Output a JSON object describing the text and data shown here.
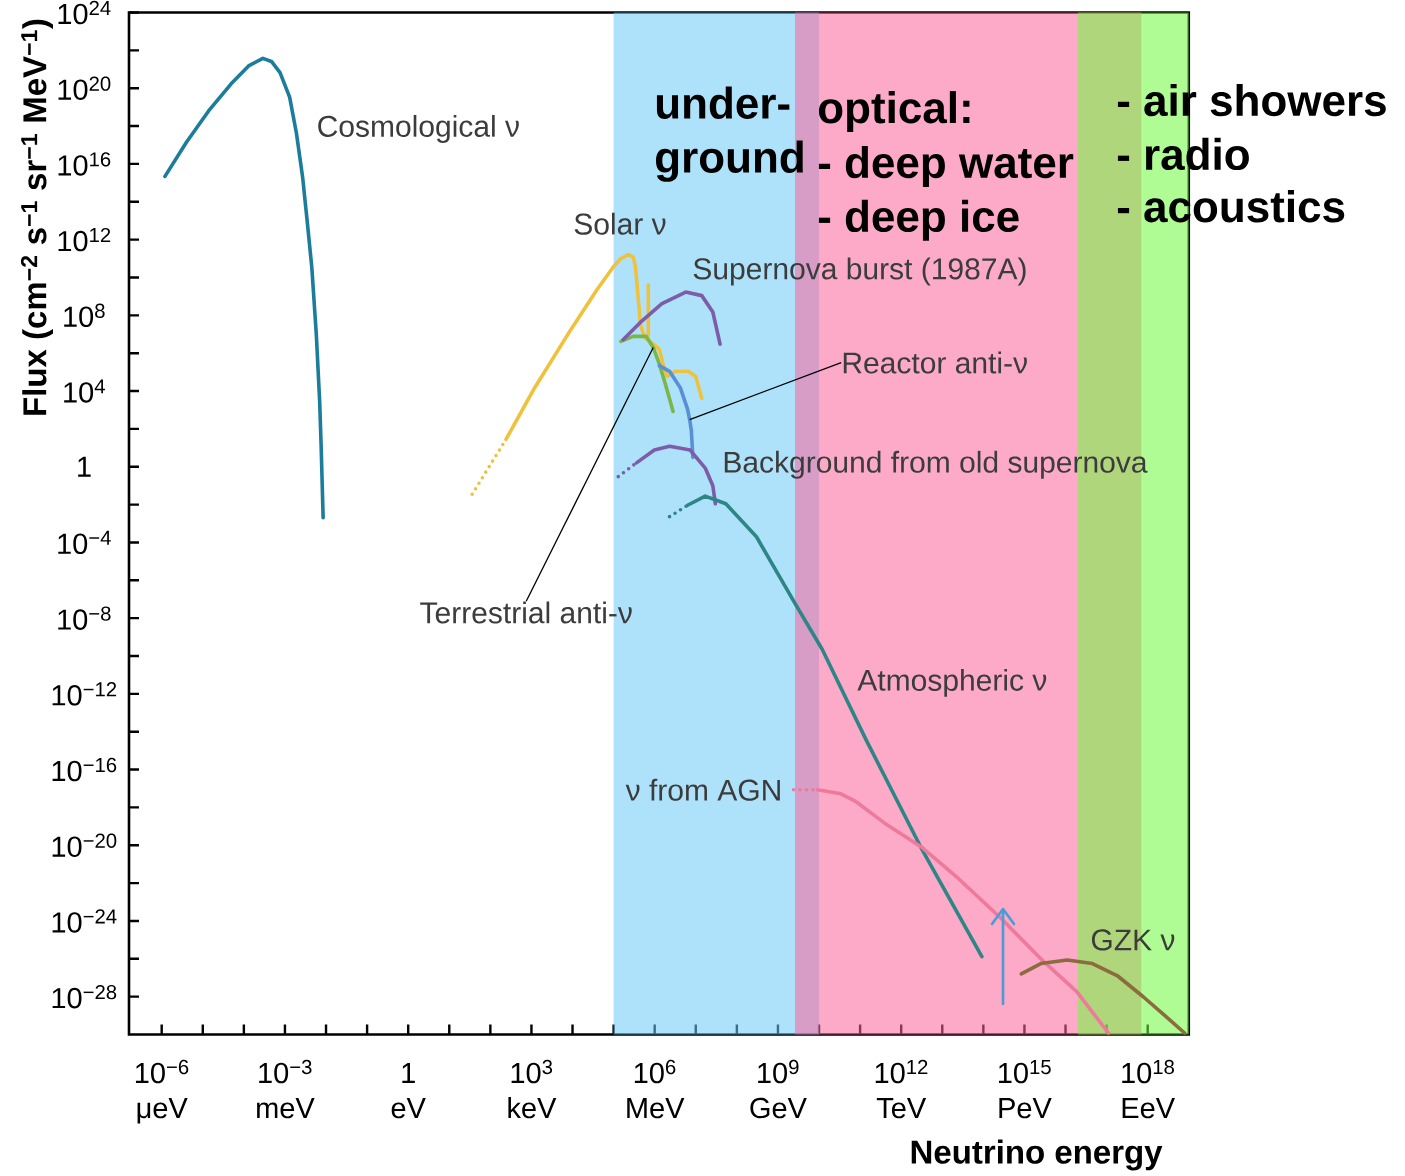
{
  "chart_data": {
    "type": "line",
    "xlabel": "Neutrino energy",
    "ylabel": "Flux (cm$^{−2}$ s$^{−1}$ sr$^{−1}$ MeV$^{−1}$)",
    "log": "xy",
    "xlim": [
      1.6e-07,
      1e+19
    ],
    "ylim": [
      1e-30,
      1e+24
    ],
    "xticks": [
      {
        "value": 1e-06,
        "label": "10$^{−6}$"
      },
      {
        "value": 1e-05,
        "label": null
      },
      {
        "value": 0.0001,
        "label": null
      },
      {
        "value": 0.001,
        "label": "10$^{−3}$"
      },
      {
        "value": 0.01,
        "label": null
      },
      {
        "value": 0.1,
        "label": null
      },
      1,
      {
        "value": 10,
        "label": null
      },
      {
        "value": 100,
        "label": null
      },
      {
        "value": 1000,
        "label": "10$^{3}$"
      },
      {
        "value": 10000.0,
        "label": null
      },
      {
        "value": 100000.0,
        "label": null
      },
      {
        "value": 1000000.0,
        "label": "10$^{6}$"
      },
      {
        "value": 10000000.0,
        "label": null
      },
      {
        "value": 100000000.0,
        "label": null
      },
      {
        "value": 1000000000.0,
        "label": "10$^{9}$"
      },
      {
        "value": 10000000000.0,
        "label": null
      },
      {
        "value": 100000000000.0,
        "label": null
      },
      {
        "value": 1000000000000.0,
        "label": "10$^{12}$"
      },
      {
        "value": 10000000000000.0,
        "label": null
      },
      {
        "value": 100000000000000.0,
        "label": null
      },
      {
        "value": 1000000000000000.0,
        "label": "10$^{15}$"
      },
      {
        "value": 1e+16,
        "label": null
      },
      {
        "value": 1e+17,
        "label": null
      },
      {
        "value": 1e+18,
        "label": "10$^{18}$"
      }
    ],
    "yticks": [
      {
        "value": 1e-28,
        "label": "10$^{−28}$"
      },
      {
        "value": 1e-26,
        "label": null
      },
      {
        "value": 1e-24,
        "label": "10$^{−24}$"
      },
      {
        "value": 1e-22,
        "label": null
      },
      {
        "value": 1e-20,
        "label": "10$^{−20}$"
      },
      {
        "value": 1e-18,
        "label": null
      },
      {
        "value": 1e-16,
        "label": "10$^{−16}$"
      },
      {
        "value": 1e-14,
        "label": null
      },
      {
        "value": 1e-12,
        "label": "10$^{−12}$"
      },
      {
        "value": 1e-10,
        "label": null
      },
      {
        "value": 1e-08,
        "label": "10$^{−8}$"
      },
      {
        "value": 1e-06,
        "label": null
      },
      {
        "value": 0.0001,
        "label": "10$^{−4}$"
      },
      {
        "value": 0.01,
        "label": null
      },
      1,
      {
        "value": 100,
        "label": null
      },
      {
        "value": 10000.0,
        "label": "10$^{4}$"
      },
      {
        "value": 1000000.0,
        "label": null
      },
      {
        "value": 100000000.0,
        "label": "10$^{8}$"
      },
      {
        "value": 10000000000.0,
        "label": null
      },
      {
        "value": 1000000000000.0,
        "label": "10$^{12}$"
      },
      {
        "value": 100000000000000.0,
        "label": null
      },
      {
        "value": 1e+16,
        "label": "10$^{16}$"
      },
      {
        "value": 1e+18,
        "label": null
      },
      {
        "value": 1e+20,
        "label": "10$^{20}$"
      },
      {
        "value": 1e+22,
        "label": null
      },
      {
        "value": 1e+24,
        "label": "10$^{24}$"
      }
    ],
    "series": [
      {
        "name": "Cosmological ν",
        "color": "#1b7d9b",
        "x": [
          1.2e-06,
          4e-06,
          1.4e-05,
          4.9e-05,
          0.00013,
          0.00029,
          0.00047,
          0.00076,
          0.0013,
          0.0019,
          0.0027,
          0.0035,
          0.0045,
          0.0058,
          0.007,
          0.0076,
          0.0085
        ],
        "values": [
          2200000000000000.0,
          1.4e+17,
          6.5e+18,
          1.7e+20,
          1.5e+21,
          3.8e+21,
          2.6e+21,
          6.6e+20,
          3.4e+19,
          4.3e+17,
          1900000000000000.0,
          8300000000000.0,
          35000000000.0,
          10000000.0,
          2800.0,
          13,
          0.002
        ]
      },
      {
        "color": "#f0c23c",
        "line_style": "dotted",
        "x": [
          36,
          240
        ],
        "values": [
          0.035,
          28
        ]
      },
      {
        "name": "Solar ν",
        "color": "#f0c23c",
        "x": [
          240,
          1200.0,
          9000.0,
          40000.0,
          97000.0,
          150000.0,
          230000.0,
          300000.0,
          340000.0,
          380000.0,
          450000.0,
          560000.0,
          830000.0,
          1300000.0,
          1600000.0,
          2000000.0,
          3200000.0,
          6600000.0,
          10000000.0,
          14000000.0
        ],
        "values": [
          28,
          15000.0,
          17000000.0,
          2400000000.0,
          35000000000.0,
          100000000000.0,
          160000000000.0,
          120000000000.0,
          35000000000.0,
          2400000000.0,
          33000000.0,
          6900000.0,
          3700000.0,
          1600000.0,
          260000.0,
          59000.0,
          110000.0,
          110000.0,
          59000.0,
          4100.0
        ]
      },
      {
        "color": "#f0c23c",
        "x": [
          700000.0,
          700000.0
        ],
        "values": [
          4100000000.0,
          8000000.0
        ]
      },
      {
        "name": "Terrestrial anti-ν",
        "color": "#7ab648",
        "x": [
          150000.0,
          300000.0,
          620000.0,
          920000.0,
          1300000.0,
          1800000.0,
          2400000.0,
          2800000.0
        ],
        "values": [
          4200000.0,
          7700000.0,
          7700000.0,
          2000000.0,
          260000.0,
          25000.0,
          2800.0,
          830.0
        ]
      },
      {
        "name": "Reactor anti-ν",
        "color": "#5b8fd4",
        "x": [
          1300000.0,
          2300000.0,
          4200000.0,
          6300000.0,
          7100000.0,
          7800000.0,
          8500000.0
        ],
        "values": [
          220000.0,
          110000.0,
          15000.0,
          1100.0,
          310.0,
          82,
          3.1
        ]
      },
      {
        "name": "Supernova burst (1987A)",
        "color": "#7d5ca8",
        "x": [
          170000.0,
          440000.0,
          1500000.0,
          5700000.0,
          14000000.0,
          26000000.0,
          39000000.0
        ],
        "values": [
          5100000.0,
          41000000.0,
          410000000.0,
          1700000000.0,
          1100000000.0,
          150000000.0,
          3000000.0
        ]
      },
      {
        "color": "#7d5ca8",
        "line_style": "dotted",
        "x": [
          130000.0,
          360000.0
        ],
        "values": [
          0.3,
          1.6
        ]
      },
      {
        "name": "Background from old supernova",
        "color": "#7d5ca8",
        "x": [
          360000.0,
          980000.0,
          2300000.0,
          7300000.0,
          17000000.0,
          26000000.0,
          30000000.0
        ],
        "values": [
          1.6,
          7.6,
          12,
          7.6,
          0.85,
          0.098,
          0.011
        ]
      },
      {
        "color": "#2e8585",
        "line_style": "dotted",
        "x": [
          2300000.0,
          6300000.0
        ],
        "values": [
          0.0023,
          0.0092
        ]
      },
      {
        "name": "Atmospheric ν",
        "color": "#2e8585",
        "x": [
          6300000.0,
          17000000.0,
          54000000.0,
          300000000.0,
          2600000000.0,
          12000000000.0,
          140000000000.0,
          3300000000000.0,
          92000000000000.0
        ],
        "values": [
          0.0092,
          0.028,
          0.011,
          0.0002,
          6e-08,
          2.2e-10,
          3.7e-15,
          5.3e-21,
          1.3e-26
        ]
      },
      {
        "color": "#ee7a9b",
        "line_style": "dotted",
        "x": [
          2400000000.0,
          9200000000.0
        ],
        "values": [
          8.5e-18,
          8.5e-18
        ]
      },
      {
        "name": "ν from AGN",
        "color": "#ee7a9b",
        "x": [
          9200000000.0,
          34000000000.0,
          80000000000.0,
          450000000000.0,
          3300000000000.0,
          25000000000000.0,
          250000000000000.0,
          2500000000000000.0,
          1.9e+16,
          1.1e+17
        ],
        "values": [
          8.5e-18,
          5.2e-18,
          2e-18,
          1.2e-19,
          7.3e-21,
          1.7e-22,
          1.6e-24,
          1e-26,
          1.8e-28,
          1.2e-30
        ]
      },
      {
        "name": "GZK ν",
        "color": "#8c6b3f",
        "x": [
          840000000000000.0,
          2500000000000000.0,
          1.1e+16,
          4.5e+16,
          1.9e+17,
          7.9e+17,
          2.5e+18,
          7.9e+18
        ],
        "values": [
          1.6e-27,
          5.6e-27,
          8.7e-27,
          5.6e-27,
          1.2e-27,
          9.6e-29,
          1.1e-29,
          1.2e-30
        ]
      }
    ],
    "bands": [
      {
        "axis": "x",
        "from": 100000.0,
        "to": 10000000000.0,
        "color": "#aee2fb"
      },
      {
        "axis": "x",
        "from": 2600000000.0,
        "to": 7e+17,
        "color": "#fcaac8"
      },
      {
        "axis": "x",
        "from": 2e+16,
        "to": 1e+19,
        "color": "#b0fc94"
      }
    ],
    "annotations": [
      "under-ground",
      "optical:",
      "- deep water",
      "- deep ice",
      "- air showers",
      "- radio",
      "- acoustics",
      "μeV",
      "meV",
      "eV",
      "keV",
      "MeV",
      "GeV",
      "TeV",
      "PeV",
      "EeV"
    ]
  }
}
